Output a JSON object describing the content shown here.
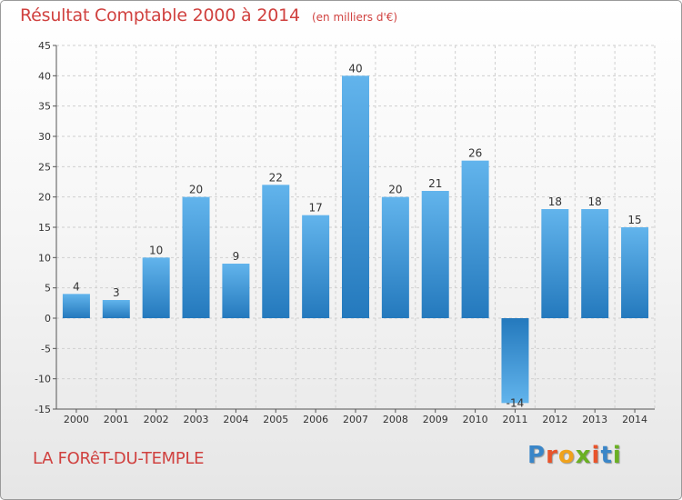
{
  "colors": {
    "title": "#d0413f",
    "bar_light": "#62b4ec",
    "bar_dark": "#2479bd",
    "grid": "#cfcfcf",
    "axis": "#555555",
    "label": "#333333"
  },
  "header": {
    "title": "Résultat Comptable 2000 à 2014",
    "unit": "(en milliers d'€)"
  },
  "footer": {
    "commune": "LA FORêT-DU-TEMPLE",
    "brand": "Proxiti",
    "brand_colors": [
      "#3a86c8",
      "#e8542c",
      "#f0a21c",
      "#6ab023",
      "#e8542c",
      "#3a86c8",
      "#6ab023"
    ]
  },
  "chart_data": {
    "type": "bar",
    "title": "Résultat Comptable 2000 à 2014",
    "subtitle": "(en milliers d'€)",
    "xlabel": "",
    "ylabel": "",
    "categories": [
      "2000",
      "2001",
      "2002",
      "2003",
      "2004",
      "2005",
      "2006",
      "2007",
      "2008",
      "2009",
      "2010",
      "2011",
      "2012",
      "2013",
      "2014"
    ],
    "values": [
      4,
      3,
      10,
      20,
      9,
      22,
      17,
      40,
      20,
      21,
      26,
      -14,
      18,
      18,
      15
    ],
    "ylim": [
      -15,
      45
    ],
    "yticks": [
      -15,
      -10,
      -5,
      0,
      5,
      10,
      15,
      20,
      25,
      30,
      35,
      40,
      45
    ],
    "grid": true,
    "legend": "none"
  }
}
